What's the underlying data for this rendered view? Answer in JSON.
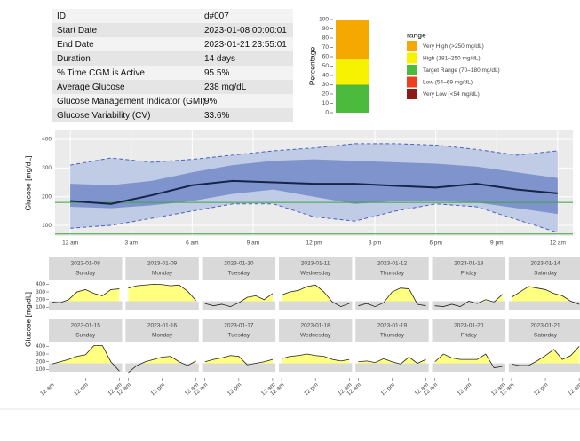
{
  "table": {
    "rows": [
      [
        "ID",
        "d#007"
      ],
      [
        "Start Date",
        "2023-01-08 00:00:01"
      ],
      [
        "End Date",
        "2023-01-21 23:55:01"
      ],
      [
        "Duration",
        "14 days"
      ],
      [
        "% Time CGM is Active",
        "95.5%"
      ],
      [
        "Average Glucose",
        "238 mg/dL"
      ],
      [
        "Glucose Management Indicator (GMI)",
        "9%"
      ],
      [
        "Glucose Variability (CV)",
        "33.6%"
      ]
    ]
  },
  "chart_data": [
    {
      "type": "bar",
      "ylabel": "Percentage",
      "ylim": [
        0,
        100
      ],
      "yticks": [
        0,
        10,
        20,
        30,
        40,
        50,
        60,
        70,
        80,
        90,
        100
      ],
      "legend_title": "range",
      "series": [
        {
          "name": "Very High (>250 mg/dL)",
          "color": "#f5a800",
          "values": [
            43
          ]
        },
        {
          "name": "High (181–250 mg/dL)",
          "color": "#f7f200",
          "values": [
            27
          ]
        },
        {
          "name": "Target Range (70–180 mg/dL)",
          "color": "#4cba3c",
          "values": [
            30
          ]
        },
        {
          "name": "Low (54–69 mg/dL)",
          "color": "#ee3e1c",
          "values": [
            0
          ]
        },
        {
          "name": "Very Low (<54 mg/dL)",
          "color": "#8e1a16",
          "values": [
            0
          ]
        }
      ]
    },
    {
      "type": "line",
      "ylabel": "Glucose [mg/dL]",
      "grid": true,
      "x": [
        0,
        2,
        4,
        6,
        8,
        10,
        12,
        14,
        16,
        18,
        20,
        22,
        24
      ],
      "xlim": [
        -0.75,
        24.75
      ],
      "ylim": [
        63,
        431
      ],
      "xticks": [
        {
          "value": 0,
          "label": "12 am"
        },
        {
          "value": 3,
          "label": "3 am"
        },
        {
          "value": 6,
          "label": "6 am"
        },
        {
          "value": 9,
          "label": "9 am"
        },
        {
          "value": 12,
          "label": "12 pm"
        },
        {
          "value": 15,
          "label": "3 pm"
        },
        {
          "value": 18,
          "label": "6 pm"
        },
        {
          "value": 21,
          "label": "9 pm"
        },
        {
          "value": 24,
          "label": "12 am"
        }
      ],
      "yticks": [
        100,
        200,
        300,
        400
      ],
      "hlines": [
        70,
        180
      ],
      "hline_color": "#3aa33a",
      "bands": [
        {
          "lower": [
            90,
            100,
            125,
            150,
            175,
            175,
            130,
            115,
            150,
            175,
            165,
            120,
            75
          ],
          "upper": [
            310,
            335,
            320,
            330,
            345,
            360,
            370,
            385,
            385,
            380,
            365,
            345,
            360
          ],
          "color": "#c0cbe6",
          "outline_color": "#4a5fc1"
        },
        {
          "lower": [
            165,
            160,
            170,
            185,
            210,
            225,
            200,
            175,
            185,
            185,
            180,
            160,
            140
          ],
          "upper": [
            245,
            240,
            255,
            285,
            310,
            325,
            330,
            325,
            320,
            315,
            305,
            285,
            265
          ],
          "color": "#7f94cc"
        }
      ],
      "series": [
        {
          "color": "#17244a",
          "values": [
            185,
            175,
            205,
            240,
            255,
            250,
            245,
            245,
            238,
            232,
            245,
            225,
            212
          ]
        }
      ]
    },
    {
      "type": "line",
      "ylabel": "Glucose [mg/dL]",
      "x": [
        0,
        3,
        6,
        9,
        12,
        15,
        18,
        21,
        24
      ],
      "xlim": [
        -1,
        25
      ],
      "ylim": [
        -10,
        450
      ],
      "xticks": [
        {
          "value": 0,
          "label": "12 am"
        },
        {
          "value": 12,
          "label": "12 pm"
        },
        {
          "value": 24,
          "label": "12 am"
        }
      ],
      "yticks": [
        100,
        200,
        300,
        400
      ],
      "target_band": [
        70,
        180
      ],
      "band_color": "#d9d9d9",
      "fill_color": "#ffff80",
      "line_color": "#222222",
      "panels": [
        {
          "date": "2023-01-08",
          "weekday": "Sunday",
          "values": [
            170,
            160,
            200,
            300,
            330,
            280,
            250,
            330,
            340
          ]
        },
        {
          "date": "2023-01-09",
          "weekday": "Monday",
          "values": [
            350,
            380,
            390,
            400,
            395,
            380,
            390,
            310,
            190
          ]
        },
        {
          "date": "2023-01-10",
          "weekday": "Tuesday",
          "values": [
            150,
            120,
            140,
            110,
            160,
            230,
            250,
            200,
            280
          ]
        },
        {
          "date": "2023-01-11",
          "weekday": "Wednesday",
          "values": [
            260,
            300,
            320,
            370,
            390,
            300,
            170,
            110,
            150
          ]
        },
        {
          "date": "2023-01-12",
          "weekday": "Thursday",
          "values": [
            120,
            150,
            110,
            160,
            300,
            350,
            340,
            140,
            120
          ]
        },
        {
          "date": "2023-01-13",
          "weekday": "Friday",
          "values": [
            120,
            110,
            140,
            110,
            180,
            150,
            200,
            170,
            270
          ]
        },
        {
          "date": "2023-01-14",
          "weekday": "Saturday",
          "values": [
            230,
            300,
            370,
            350,
            330,
            280,
            250,
            180,
            140
          ]
        },
        {
          "date": "2023-01-15",
          "weekday": "Sunday",
          "values": [
            170,
            200,
            230,
            270,
            290,
            410,
            410,
            200,
            80
          ]
        },
        {
          "date": "2023-01-16",
          "weekday": "Monday",
          "values": [
            60,
            150,
            200,
            230,
            260,
            270,
            200,
            150,
            210
          ]
        },
        {
          "date": "2023-01-17",
          "weekday": "Tuesday",
          "values": [
            200,
            230,
            250,
            280,
            270,
            160,
            180,
            200,
            230
          ]
        },
        {
          "date": "2023-01-18",
          "weekday": "Wednesday",
          "values": [
            240,
            270,
            280,
            300,
            280,
            270,
            230,
            210,
            230
          ]
        },
        {
          "date": "2023-01-19",
          "weekday": "Thursday",
          "values": [
            200,
            210,
            190,
            240,
            200,
            170,
            260,
            180,
            230
          ]
        },
        {
          "date": "2023-01-20",
          "weekday": "Friday",
          "values": [
            200,
            300,
            250,
            230,
            230,
            230,
            300,
            120,
            140
          ]
        },
        {
          "date": "2023-01-21",
          "weekday": "Saturday",
          "values": [
            170,
            150,
            150,
            210,
            280,
            360,
            230,
            280,
            400
          ]
        }
      ]
    }
  ]
}
